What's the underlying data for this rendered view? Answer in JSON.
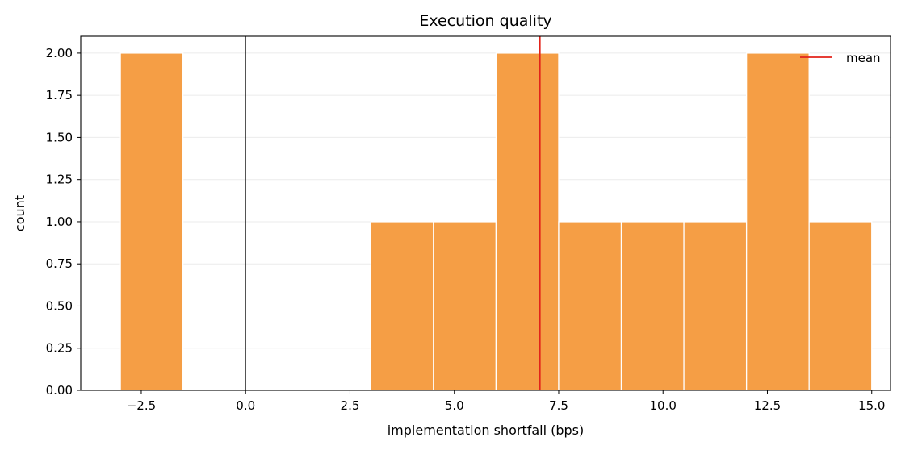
{
  "chart_data": {
    "type": "bar",
    "title": "Execution quality",
    "xlabel": "implementation shortfall (bps)",
    "ylabel": "count",
    "xlim": [
      -3.95,
      15.45
    ],
    "ylim": [
      0,
      2.1
    ],
    "xticks": [
      -2.5,
      0.0,
      2.5,
      5.0,
      7.5,
      10.0,
      12.5,
      15.0
    ],
    "xtick_labels": [
      "−2.5",
      "0.0",
      "2.5",
      "5.0",
      "7.5",
      "10.0",
      "12.5",
      "15.0"
    ],
    "yticks": [
      0.0,
      0.25,
      0.5,
      0.75,
      1.0,
      1.25,
      1.5,
      1.75,
      2.0
    ],
    "ytick_labels": [
      "0.00",
      "0.25",
      "0.50",
      "0.75",
      "1.00",
      "1.25",
      "1.50",
      "1.75",
      "2.00"
    ],
    "bins": [
      {
        "x0": -3.0,
        "x1": -1.5,
        "count": 2
      },
      {
        "x0": -1.5,
        "x1": 0.0,
        "count": 0
      },
      {
        "x0": 0.0,
        "x1": 1.5,
        "count": 0
      },
      {
        "x0": 1.5,
        "x1": 3.0,
        "count": 0
      },
      {
        "x0": 3.0,
        "x1": 4.5,
        "count": 1
      },
      {
        "x0": 4.5,
        "x1": 6.0,
        "count": 1
      },
      {
        "x0": 6.0,
        "x1": 7.5,
        "count": 2
      },
      {
        "x0": 7.5,
        "x1": 9.0,
        "count": 1
      },
      {
        "x0": 9.0,
        "x1": 10.5,
        "count": 1
      },
      {
        "x0": 10.5,
        "x1": 12.0,
        "count": 1
      },
      {
        "x0": 12.0,
        "x1": 13.5,
        "count": 2
      },
      {
        "x0": 13.5,
        "x1": 15.0,
        "count": 1
      }
    ],
    "mean": 7.05,
    "zero_line": 0.0,
    "legend": {
      "entries": [
        "mean"
      ],
      "placement": "top-right"
    },
    "grid": {
      "y": true,
      "x": false
    },
    "colors": {
      "bar": "#f59e45",
      "bar_edge": "#ffffff",
      "mean_line": "#e2231a",
      "zero_line": "#000000",
      "grid": "#ebebeb"
    }
  }
}
